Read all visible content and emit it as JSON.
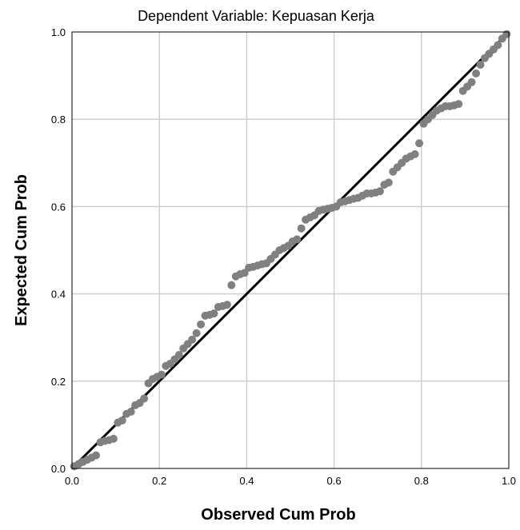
{
  "chart_data": {
    "type": "scatter",
    "title": "Dependent Variable: Kepuasan Kerja",
    "xlabel": "Observed Cum Prob",
    "ylabel": "Expected Cum Prob",
    "xlim": [
      0,
      1
    ],
    "ylim": [
      0,
      1
    ],
    "grid": true,
    "x_ticks": [
      "0.0",
      "0.2",
      "0.4",
      "0.6",
      "0.8",
      "1.0"
    ],
    "y_ticks": [
      "0.0",
      "0.2",
      "0.4",
      "0.6",
      "0.8",
      "1.0"
    ],
    "reference_line": {
      "from": [
        0,
        0
      ],
      "to": [
        1,
        1
      ]
    },
    "colors": {
      "points": "#808080",
      "line": "#000000",
      "grid": "#cfcfcf",
      "frame": "#000000"
    },
    "points": [
      [
        0.005,
        0.005
      ],
      [
        0.015,
        0.01
      ],
      [
        0.025,
        0.015
      ],
      [
        0.035,
        0.02
      ],
      [
        0.045,
        0.025
      ],
      [
        0.055,
        0.03
      ],
      [
        0.065,
        0.06
      ],
      [
        0.075,
        0.063
      ],
      [
        0.085,
        0.065
      ],
      [
        0.095,
        0.068
      ],
      [
        0.105,
        0.105
      ],
      [
        0.115,
        0.11
      ],
      [
        0.125,
        0.125
      ],
      [
        0.135,
        0.13
      ],
      [
        0.145,
        0.145
      ],
      [
        0.155,
        0.15
      ],
      [
        0.165,
        0.16
      ],
      [
        0.175,
        0.195
      ],
      [
        0.185,
        0.205
      ],
      [
        0.195,
        0.21
      ],
      [
        0.205,
        0.215
      ],
      [
        0.215,
        0.235
      ],
      [
        0.225,
        0.24
      ],
      [
        0.235,
        0.25
      ],
      [
        0.245,
        0.26
      ],
      [
        0.255,
        0.275
      ],
      [
        0.265,
        0.285
      ],
      [
        0.275,
        0.295
      ],
      [
        0.285,
        0.31
      ],
      [
        0.295,
        0.33
      ],
      [
        0.305,
        0.35
      ],
      [
        0.315,
        0.352
      ],
      [
        0.325,
        0.355
      ],
      [
        0.335,
        0.37
      ],
      [
        0.345,
        0.372
      ],
      [
        0.355,
        0.375
      ],
      [
        0.365,
        0.42
      ],
      [
        0.375,
        0.44
      ],
      [
        0.385,
        0.445
      ],
      [
        0.395,
        0.448
      ],
      [
        0.405,
        0.46
      ],
      [
        0.415,
        0.462
      ],
      [
        0.425,
        0.465
      ],
      [
        0.435,
        0.468
      ],
      [
        0.445,
        0.47
      ],
      [
        0.455,
        0.48
      ],
      [
        0.465,
        0.49
      ],
      [
        0.475,
        0.5
      ],
      [
        0.485,
        0.505
      ],
      [
        0.495,
        0.51
      ],
      [
        0.505,
        0.52
      ],
      [
        0.515,
        0.525
      ],
      [
        0.525,
        0.55
      ],
      [
        0.535,
        0.57
      ],
      [
        0.545,
        0.575
      ],
      [
        0.555,
        0.58
      ],
      [
        0.565,
        0.59
      ],
      [
        0.575,
        0.593
      ],
      [
        0.585,
        0.595
      ],
      [
        0.595,
        0.597
      ],
      [
        0.605,
        0.6
      ],
      [
        0.615,
        0.61
      ],
      [
        0.625,
        0.612
      ],
      [
        0.635,
        0.615
      ],
      [
        0.645,
        0.618
      ],
      [
        0.655,
        0.62
      ],
      [
        0.665,
        0.625
      ],
      [
        0.675,
        0.63
      ],
      [
        0.685,
        0.63
      ],
      [
        0.695,
        0.632
      ],
      [
        0.705,
        0.635
      ],
      [
        0.715,
        0.65
      ],
      [
        0.725,
        0.655
      ],
      [
        0.735,
        0.68
      ],
      [
        0.745,
        0.69
      ],
      [
        0.755,
        0.7
      ],
      [
        0.765,
        0.71
      ],
      [
        0.775,
        0.715
      ],
      [
        0.785,
        0.72
      ],
      [
        0.795,
        0.745
      ],
      [
        0.805,
        0.79
      ],
      [
        0.815,
        0.8
      ],
      [
        0.825,
        0.81
      ],
      [
        0.835,
        0.82
      ],
      [
        0.845,
        0.825
      ],
      [
        0.855,
        0.83
      ],
      [
        0.865,
        0.83
      ],
      [
        0.875,
        0.832
      ],
      [
        0.885,
        0.835
      ],
      [
        0.895,
        0.865
      ],
      [
        0.905,
        0.875
      ],
      [
        0.915,
        0.885
      ],
      [
        0.925,
        0.905
      ],
      [
        0.935,
        0.925
      ],
      [
        0.945,
        0.94
      ],
      [
        0.955,
        0.95
      ],
      [
        0.965,
        0.96
      ],
      [
        0.975,
        0.97
      ],
      [
        0.985,
        0.985
      ],
      [
        0.995,
        0.995
      ]
    ]
  }
}
